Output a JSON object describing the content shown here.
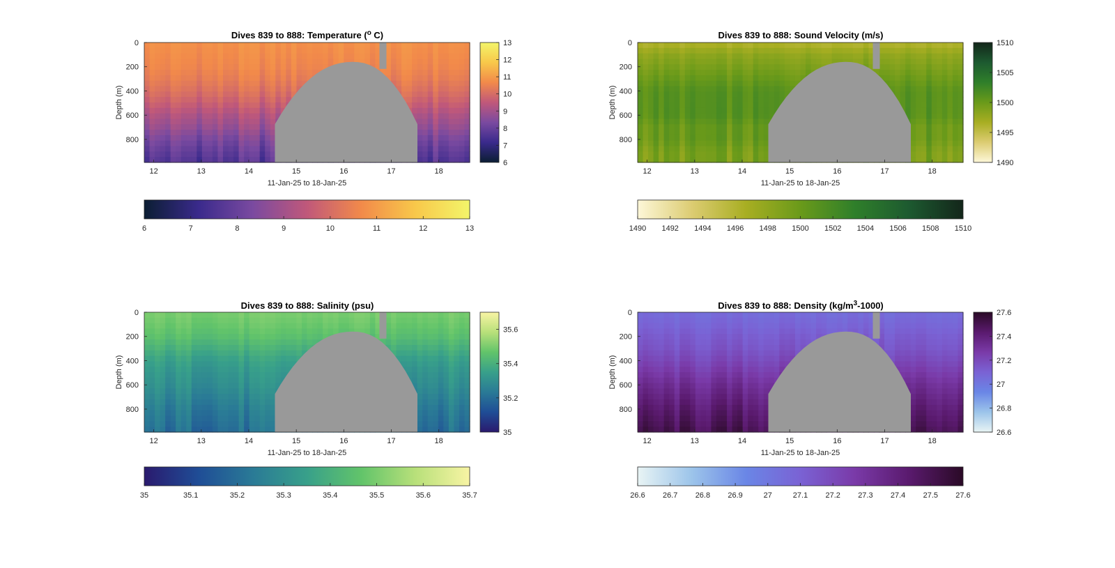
{
  "figure": {
    "gap_color": "#999999",
    "panels": [
      {
        "id": "temperature",
        "title": "Dives 839 to 888: Temperature (",
        "title_sup": "o",
        "title_end": " C)",
        "title_sup_raised": true,
        "xlabel": "11-Jan-25 to 18-Jan-25",
        "ylabel": "Depth (m)",
        "xticks": [
          "12",
          "13",
          "14",
          "15",
          "16",
          "17",
          "18"
        ],
        "yticks": [
          "0",
          "200",
          "400",
          "600",
          "800"
        ],
        "side_colorbar_ticks": [
          "13",
          "12",
          "11",
          "10",
          "9",
          "8",
          "7",
          "6"
        ],
        "bottom_colorbar_ticks": [
          "6",
          "7",
          "8",
          "9",
          "10",
          "11",
          "12",
          "13"
        ],
        "colormap": [
          "#0b1e33",
          "#3a2a8c",
          "#7a4aa0",
          "#c0587a",
          "#f28a4a",
          "#f8c84a",
          "#f3f56a"
        ]
      },
      {
        "id": "sound-velocity",
        "title": "Dives 839 to 888: Sound Velocity (m/s)",
        "xlabel": "11-Jan-25 to 18-Jan-25",
        "ylabel": "Depth (m)",
        "xticks": [
          "12",
          "13",
          "14",
          "15",
          "16",
          "17",
          "18"
        ],
        "yticks": [
          "0",
          "200",
          "400",
          "600",
          "800"
        ],
        "side_colorbar_ticks": [
          "1510",
          "1505",
          "1500",
          "1495",
          "1490"
        ],
        "bottom_colorbar_ticks": [
          "1490",
          "1492",
          "1494",
          "1496",
          "1498",
          "1500",
          "1502",
          "1504",
          "1506",
          "1508",
          "1510"
        ],
        "colormap": [
          "#fdf7d8",
          "#dccc72",
          "#a8ae22",
          "#6a9a1a",
          "#2f7f2a",
          "#1d5a30",
          "#13261a"
        ]
      },
      {
        "id": "salinity",
        "title": "Dives 839 to 888: Salinity (psu)",
        "xlabel": "11-Jan-25 to 18-Jan-25",
        "ylabel": "Depth (m)",
        "xticks": [
          "12",
          "13",
          "14",
          "15",
          "16",
          "17",
          "18"
        ],
        "yticks": [
          "0",
          "200",
          "400",
          "600",
          "800"
        ],
        "side_colorbar_ticks": [
          "35.6",
          "35.4",
          "35.2",
          "35"
        ],
        "bottom_colorbar_ticks": [
          "35",
          "35.1",
          "35.2",
          "35.3",
          "35.4",
          "35.5",
          "35.6",
          "35.7"
        ],
        "colormap": [
          "#2a1a6e",
          "#1f4d96",
          "#2a7a96",
          "#38a08a",
          "#62c46a",
          "#b8e07a",
          "#f8f4a4"
        ]
      },
      {
        "id": "density",
        "title": "Dives 839 to 888: Density (kg/m",
        "title_sup": "3",
        "title_end": "-1000)",
        "xlabel": "11-Jan-25 to 18-Jan-25",
        "ylabel": "Depth (m)",
        "xticks": [
          "12",
          "13",
          "14",
          "15",
          "16",
          "17",
          "18"
        ],
        "yticks": [
          "0",
          "200",
          "400",
          "600",
          "800"
        ],
        "side_colorbar_ticks": [
          "27.6",
          "27.4",
          "27.2",
          "27",
          "26.8",
          "26.6"
        ],
        "bottom_colorbar_ticks": [
          "26.6",
          "26.7",
          "26.8",
          "26.9",
          "27",
          "27.1",
          "27.2",
          "27.3",
          "27.4",
          "27.5",
          "27.6"
        ],
        "colormap": [
          "#e8f4f4",
          "#9cc4ea",
          "#6a86e6",
          "#7a62d4",
          "#7a3aa8",
          "#5a1a6e",
          "#2a0a26"
        ]
      }
    ]
  },
  "chart_data": [
    {
      "type": "heatmap",
      "title": "Dives 839 to 888: Temperature (o C)",
      "xlabel": "11-Jan-25 to 18-Jan-25",
      "ylabel": "Depth (m)",
      "xlim": [
        11.8,
        18.65
      ],
      "ylim": [
        990,
        0
      ],
      "clim": [
        6,
        13
      ],
      "units": "°C",
      "profile": {
        "depth": [
          0,
          100,
          200,
          300,
          400,
          500,
          600,
          700,
          800,
          900,
          990
        ],
        "value": [
          10.8,
          10.7,
          10.6,
          10.4,
          10.1,
          9.7,
          9.2,
          8.8,
          8.3,
          7.9,
          7.6
        ]
      },
      "no_data_gap": {
        "start_day": 14.55,
        "end_day": 17.55,
        "top_depth": 160,
        "peak_day": 16.2
      }
    },
    {
      "type": "heatmap",
      "title": "Dives 839 to 888: Sound Velocity (m/s)",
      "xlabel": "11-Jan-25 to 18-Jan-25",
      "ylabel": "Depth (m)",
      "xlim": [
        11.8,
        18.65
      ],
      "ylim": [
        990,
        0
      ],
      "clim": [
        1490,
        1510
      ],
      "units": "m/s",
      "profile": {
        "depth": [
          0,
          100,
          200,
          300,
          400,
          500,
          600,
          700,
          800,
          900,
          990
        ],
        "value": [
          1496,
          1498,
          1499,
          1500,
          1501,
          1501,
          1501,
          1500,
          1500,
          1499,
          1499
        ]
      },
      "no_data_gap": {
        "start_day": 14.55,
        "end_day": 17.55,
        "top_depth": 160,
        "peak_day": 16.2
      }
    },
    {
      "type": "heatmap",
      "title": "Dives 839 to 888: Salinity (psu)",
      "xlabel": "11-Jan-25 to 18-Jan-25",
      "ylabel": "Depth (m)",
      "xlim": [
        11.8,
        18.65
      ],
      "ylim": [
        990,
        0
      ],
      "clim": [
        35,
        35.7
      ],
      "units": "psu",
      "profile": {
        "depth": [
          0,
          100,
          200,
          300,
          400,
          500,
          600,
          700,
          800,
          900,
          990
        ],
        "value": [
          35.5,
          35.48,
          35.45,
          35.4,
          35.35,
          35.32,
          35.3,
          35.27,
          35.24,
          35.22,
          35.2
        ]
      },
      "no_data_gap": {
        "start_day": 14.55,
        "end_day": 17.55,
        "top_depth": 160,
        "peak_day": 16.2
      }
    },
    {
      "type": "heatmap",
      "title": "Dives 839 to 888: Density (kg/m3-1000)",
      "xlabel": "11-Jan-25 to 18-Jan-25",
      "ylabel": "Depth (m)",
      "xlim": [
        11.8,
        18.65
      ],
      "ylim": [
        990,
        0
      ],
      "clim": [
        26.6,
        27.6
      ],
      "units": "kg/m3-1000",
      "profile": {
        "depth": [
          0,
          100,
          200,
          300,
          400,
          500,
          600,
          700,
          800,
          900,
          990
        ],
        "value": [
          27.05,
          27.08,
          27.12,
          27.15,
          27.2,
          27.26,
          27.32,
          27.37,
          27.42,
          27.46,
          27.5
        ]
      },
      "no_data_gap": {
        "start_day": 14.55,
        "end_day": 17.55,
        "top_depth": 160,
        "peak_day": 16.2
      }
    }
  ]
}
